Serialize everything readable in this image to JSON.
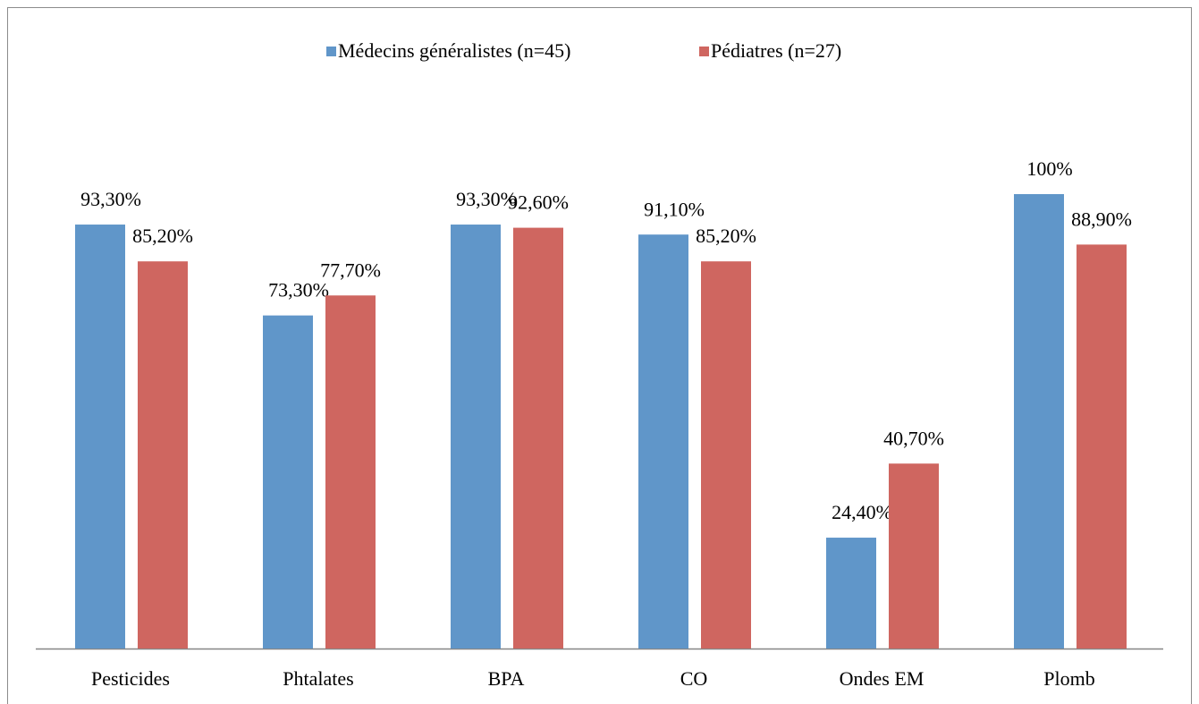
{
  "chart_data": {
    "type": "bar",
    "categories": [
      "Pesticides",
      "Phtalates",
      "BPA",
      "CO",
      "Ondes EM",
      "Plomb"
    ],
    "series": [
      {
        "name": "Médecins généralistes (n=45)",
        "color": "#6096c9",
        "values": [
          93.3,
          73.3,
          93.3,
          91.1,
          24.4,
          100
        ],
        "value_labels": [
          "93,30%",
          "73,30%",
          "93,30%",
          "91,10%",
          "24,40%",
          "100%"
        ]
      },
      {
        "name": "Pédiatres (n=27)",
        "color": "#cf6660",
        "values": [
          85.2,
          77.7,
          92.6,
          85.2,
          40.7,
          88.9
        ],
        "value_labels": [
          "85,20%",
          "77,70%",
          "92,60%",
          "85,20%",
          "40,70%",
          "88,90%"
        ]
      }
    ]
  }
}
